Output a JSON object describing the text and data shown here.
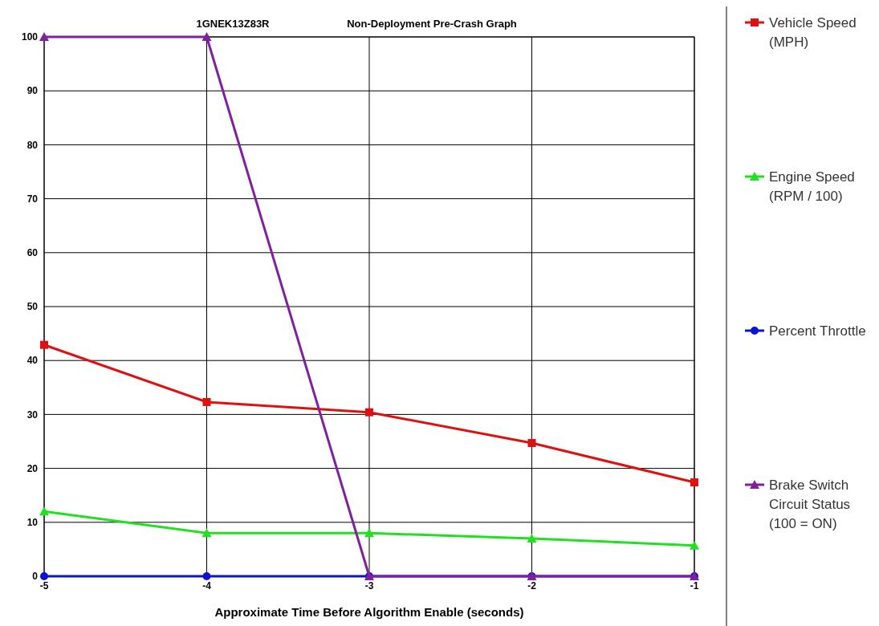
{
  "chart_data": {
    "type": "line",
    "title": "Non-Deployment Pre-Crash Graph",
    "subtitle": "1GNEK13Z83R",
    "xlabel": "Approximate Time Before Algorithm Enable (seconds)",
    "x": [
      -5,
      -4,
      -3,
      -2,
      -1
    ],
    "xlim": [
      -5,
      -1
    ],
    "xticks": [
      -5,
      -4,
      -3,
      -2,
      -1
    ],
    "ylim": [
      0,
      100
    ],
    "yticks": [
      0,
      10,
      20,
      30,
      40,
      50,
      60,
      70,
      80,
      90,
      100
    ],
    "grid": true,
    "legend": "right",
    "series": [
      {
        "name": "Vehicle Speed (MPH)",
        "color": "#e01010",
        "marker": "square",
        "values": [
          42.9,
          32.3,
          30.4,
          24.7,
          17.4
        ]
      },
      {
        "name": "Engine Speed (RPM / 100)",
        "color": "#20e020",
        "marker": "triangle",
        "values": [
          12,
          8,
          8,
          7,
          5.7
        ]
      },
      {
        "name": "Percent Throttle",
        "color": "#0a14d0",
        "marker": "circle",
        "values": [
          0,
          0,
          0,
          0,
          0
        ]
      },
      {
        "name": "Brake Switch Circuit Status (100 = ON)",
        "color": "#8020a0",
        "marker": "triangle",
        "values": [
          100,
          100,
          0,
          0,
          0
        ]
      }
    ]
  }
}
